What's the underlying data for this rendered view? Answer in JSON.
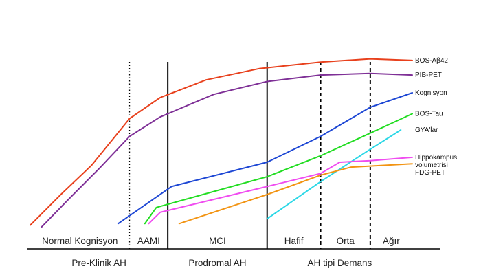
{
  "chart_data": {
    "type": "line",
    "title": "",
    "xlabel": "",
    "ylabel": "",
    "grid": false,
    "legend": "right, labels at line ends",
    "stages": [
      {
        "label": "Normal Kognisyon",
        "x": [
          0,
          26
        ]
      },
      {
        "label": "AAMI",
        "x": [
          26,
          36
        ]
      },
      {
        "label": "MCI",
        "x": [
          36,
          62
        ]
      },
      {
        "label": "Hafif",
        "x": [
          62,
          76
        ]
      },
      {
        "label": "Orta",
        "x": [
          76,
          89
        ]
      },
      {
        "label": "Ağır",
        "x": [
          89,
          100
        ]
      }
    ],
    "phases": [
      {
        "label": "Pre-Klinik AH",
        "x": [
          0,
          36
        ]
      },
      {
        "label": "Prodromal AH",
        "x": [
          36,
          62
        ]
      },
      {
        "label": "AH tipi Demans",
        "x": [
          62,
          100
        ]
      }
    ],
    "boundaries": [
      {
        "x": 26,
        "style": "dotted"
      },
      {
        "x": 36,
        "style": "solid"
      },
      {
        "x": 62,
        "style": "solid"
      },
      {
        "x": 76,
        "style": "dashed"
      },
      {
        "x": 89,
        "style": "dashed"
      }
    ],
    "xlim": [
      0,
      100
    ],
    "ylim": [
      0,
      100
    ],
    "series": [
      {
        "name": "BOS-Aβ42",
        "color": "#e8401c",
        "points": [
          [
            0,
            1
          ],
          [
            8,
            20
          ],
          [
            16,
            38
          ],
          [
            26,
            67
          ],
          [
            34,
            80
          ],
          [
            46,
            91
          ],
          [
            60,
            98
          ],
          [
            76,
            102
          ],
          [
            89,
            104
          ],
          [
            100,
            103
          ]
        ]
      },
      {
        "name": "PIB-PET",
        "color": "#7e2f96",
        "points": [
          [
            3,
            0
          ],
          [
            10,
            17
          ],
          [
            18,
            36
          ],
          [
            26,
            56
          ],
          [
            34,
            68
          ],
          [
            48,
            82
          ],
          [
            62,
            90
          ],
          [
            76,
            94
          ],
          [
            89,
            95
          ],
          [
            100,
            94
          ]
        ]
      },
      {
        "name": "Kognisyon",
        "color": "#1c46d4",
        "points": [
          [
            23,
            2
          ],
          [
            37,
            25
          ],
          [
            62,
            40
          ],
          [
            76,
            56
          ],
          [
            89,
            74
          ],
          [
            100,
            83
          ]
        ]
      },
      {
        "name": "BOS-Tau",
        "color": "#22dd22",
        "points": [
          [
            30,
            2
          ],
          [
            33,
            12
          ],
          [
            62,
            31
          ],
          [
            76,
            44
          ],
          [
            89,
            58
          ],
          [
            100,
            70
          ]
        ]
      },
      {
        "name": "GYA'lar",
        "color": "#2ad7e6",
        "points": [
          [
            62,
            5
          ],
          [
            76,
            28
          ],
          [
            89,
            48
          ],
          [
            97,
            60
          ]
        ]
      },
      {
        "name": "Hippokampus volumetrisi",
        "color": "#f04cf0",
        "points": [
          [
            31,
            2
          ],
          [
            34,
            9
          ],
          [
            62,
            25
          ],
          [
            76,
            33
          ],
          [
            81,
            40
          ],
          [
            89,
            41
          ],
          [
            100,
            43
          ]
        ]
      },
      {
        "name": "FDG-PET",
        "color": "#f29413",
        "points": [
          [
            39,
            2
          ],
          [
            62,
            20
          ],
          [
            76,
            32
          ],
          [
            84,
            37
          ],
          [
            100,
            39
          ]
        ]
      }
    ],
    "end_labels": [
      {
        "series": 0,
        "lines": [
          "BOS-Aβ42"
        ]
      },
      {
        "series": 1,
        "lines": [
          "PIB-PET"
        ]
      },
      {
        "series": 2,
        "lines": [
          "Kognisyon"
        ]
      },
      {
        "series": 3,
        "lines": [
          "BOS-Tau"
        ]
      },
      {
        "series": 4,
        "lines": [
          "GYA'lar"
        ]
      },
      {
        "series": 5,
        "lines": [
          "Hippokampus",
          "volumetrisi"
        ]
      },
      {
        "series": 6,
        "lines": [
          "FDG-PET"
        ]
      }
    ]
  }
}
